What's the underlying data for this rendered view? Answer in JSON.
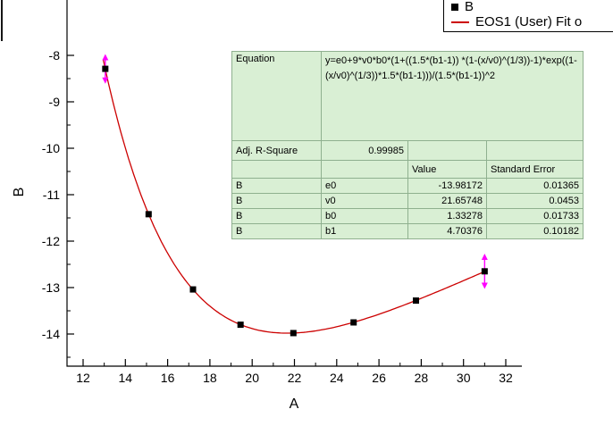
{
  "legend": {
    "series_label": "B",
    "fit_label": "EOS1 (User) Fit o"
  },
  "axes": {
    "x_label": "A",
    "y_label": "B",
    "x_ticks": [
      12,
      14,
      16,
      18,
      20,
      22,
      24,
      26,
      28,
      30,
      32
    ],
    "y_ticks": [
      -8,
      -9,
      -10,
      -11,
      -12,
      -13,
      -14
    ]
  },
  "fit_table": {
    "equation_label": "Equation",
    "equation": "y=e0+9*v0*b0*(1+((1.5*(b1-1)) *(1-(x/v0)^(1/3))-1)*exp((1-(x/v0)^(1/3))*1.5*(b1-1)))/(1.5*(b1-1))^2",
    "r_square_label": "Adj. R-Square",
    "r_square": "0.99985",
    "value_header": "Value",
    "error_header": "Standard Error",
    "bg": "#d9efd4",
    "border_color": "#8fb08f",
    "rows": [
      {
        "series": "B",
        "param": "e0",
        "value": "-13.98172",
        "error": "0.01365"
      },
      {
        "series": "B",
        "param": "v0",
        "value": "21.65748",
        "error": "0.0453"
      },
      {
        "series": "B",
        "param": "b0",
        "value": "1.33278",
        "error": "0.01733"
      },
      {
        "series": "B",
        "param": "b1",
        "value": "4.70376",
        "error": "0.10182"
      }
    ]
  },
  "chart_data": {
    "type": "scatter",
    "title": "",
    "xlabel": "A",
    "ylabel": "B",
    "xlim": [
      11.2,
      32.8
    ],
    "ylim": [
      -14.7,
      -6.8
    ],
    "grid": false,
    "legend_position": "top-right",
    "series": [
      {
        "name": "B",
        "plot": "scatter",
        "marker": "filled-square",
        "color": "#000000",
        "x": [
          13.05,
          15.1,
          17.2,
          19.45,
          21.95,
          24.8,
          27.75,
          31.0
        ],
        "y": [
          -8.29,
          -11.42,
          -13.04,
          -13.8,
          -13.98,
          -13.75,
          -13.28,
          -12.65
        ],
        "error_color": "#ff00ff",
        "error_arrows": [
          {
            "point_index": 0,
            "span": 0.32
          },
          {
            "point_index": 7,
            "span": 0.38
          }
        ]
      },
      {
        "name": "EOS1 (User) Fit o",
        "plot": "line",
        "color": "#cc0000",
        "x_range": [
          12.95,
          31.05
        ],
        "fit_params": {
          "e0": -13.98172,
          "v0": 21.65748,
          "b0": 1.33278,
          "b1": 4.70376
        }
      }
    ]
  }
}
